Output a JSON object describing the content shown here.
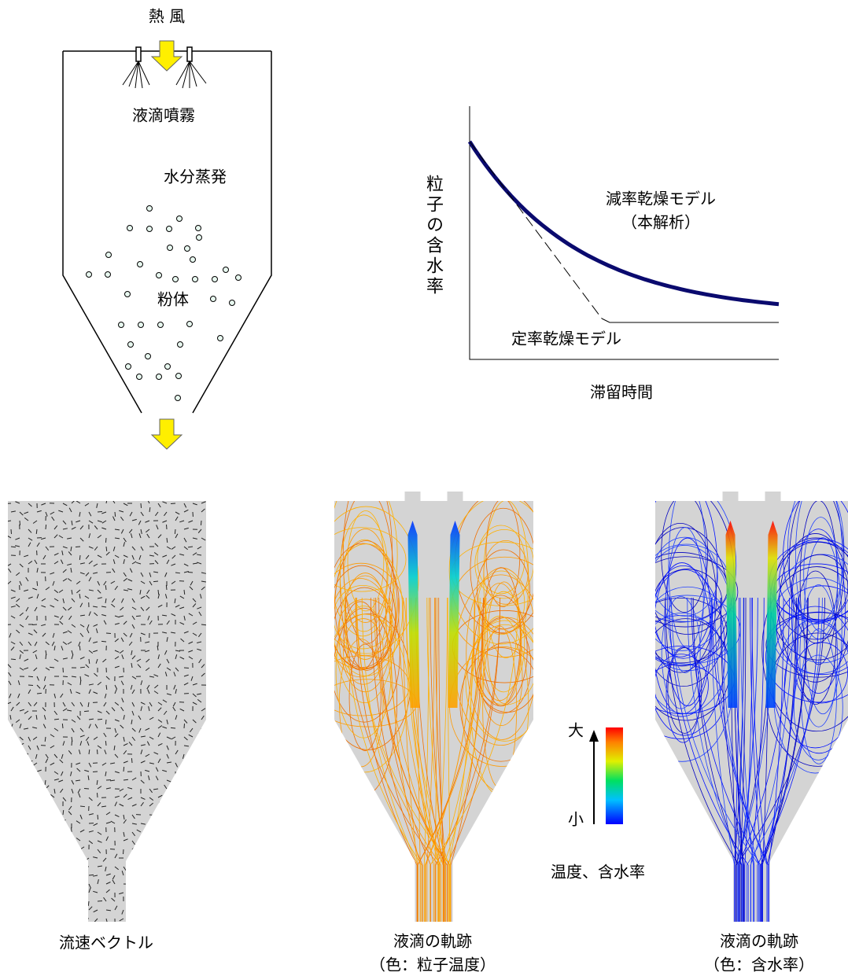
{
  "schematic": {
    "hot_air": "熱 風",
    "spray": "液滴噴霧",
    "evaporation": "水分蒸発",
    "powder": "粉体"
  },
  "graph": {
    "y_label": "粒子の含水率",
    "x_label": "滞留時間",
    "falling_rate": [
      "減率乾燥モデル",
      "（本解析）"
    ],
    "constant_rate": "定率乾燥モデル"
  },
  "panels": [
    {
      "caption": [
        "流速ベクトル"
      ]
    },
    {
      "caption": [
        "液滴の軌跡",
        "（色：粒子温度）"
      ]
    },
    {
      "caption": [
        "液滴の軌跡",
        "（色：含水率）"
      ]
    }
  ],
  "legend": {
    "high": "大",
    "low": "小",
    "title": "温度、含水率"
  }
}
